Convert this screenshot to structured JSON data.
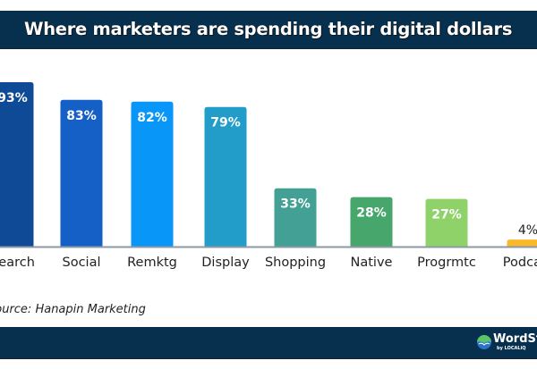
{
  "header": {
    "title": "Where marketers are spending their digital dollars"
  },
  "source": "Source: Hanapin Marketing",
  "footer": {
    "logo_text": "WordStream",
    "logo_sub": "by LOCALiQ"
  },
  "chart_data": {
    "type": "bar",
    "title": "Where marketers are spending their digital dollars",
    "xlabel": "",
    "ylabel": "",
    "ylim": [
      0,
      100
    ],
    "grid": false,
    "legend": "none",
    "categories": [
      "Search",
      "Social",
      "Remktg",
      "Display",
      "Shopping",
      "Native",
      "Progrmtc",
      "Podcast"
    ],
    "values": [
      93,
      83,
      82,
      79,
      33,
      28,
      27,
      4
    ],
    "value_labels": [
      "93%",
      "83%",
      "82%",
      "79%",
      "33%",
      "28%",
      "27%",
      "4%"
    ],
    "colors": [
      "#0f4a96",
      "#1560c6",
      "#0896f8",
      "#229cc8",
      "#42a194",
      "#46a66c",
      "#90d26a",
      "#fab82a"
    ],
    "annotation": "Source: Hanapin Marketing"
  }
}
